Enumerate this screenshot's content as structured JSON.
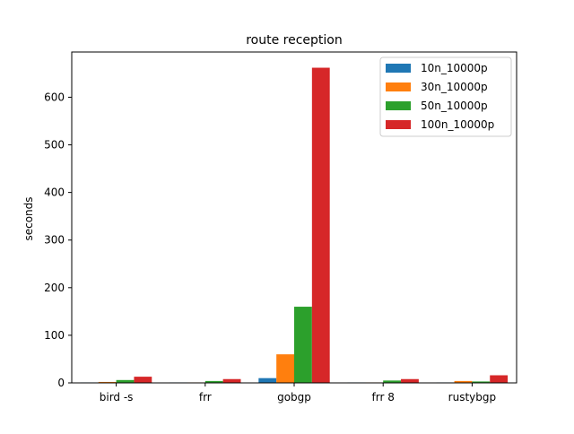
{
  "chart_data": {
    "type": "bar",
    "title": "route reception",
    "xlabel": "",
    "ylabel": "seconds",
    "categories": [
      "bird -s",
      "frr",
      "gobgp",
      "frr 8",
      "rustybgp"
    ],
    "series": [
      {
        "name": "10n_10000p",
        "color": "#1f77b4",
        "values": [
          1,
          1,
          10,
          1,
          1
        ]
      },
      {
        "name": "30n_10000p",
        "color": "#ff7f0e",
        "values": [
          2,
          1,
          60,
          1,
          4
        ]
      },
      {
        "name": "50n_10000p",
        "color": "#2ca02c",
        "values": [
          6,
          4,
          160,
          5,
          3
        ]
      },
      {
        "name": "100n_10000p",
        "color": "#d62728",
        "values": [
          13,
          8,
          662,
          8,
          16
        ]
      }
    ],
    "ylim": [
      0,
      695
    ],
    "yticks": [
      0,
      100,
      200,
      300,
      400,
      500,
      600
    ],
    "grid": false,
    "legend_position": "top-right"
  }
}
